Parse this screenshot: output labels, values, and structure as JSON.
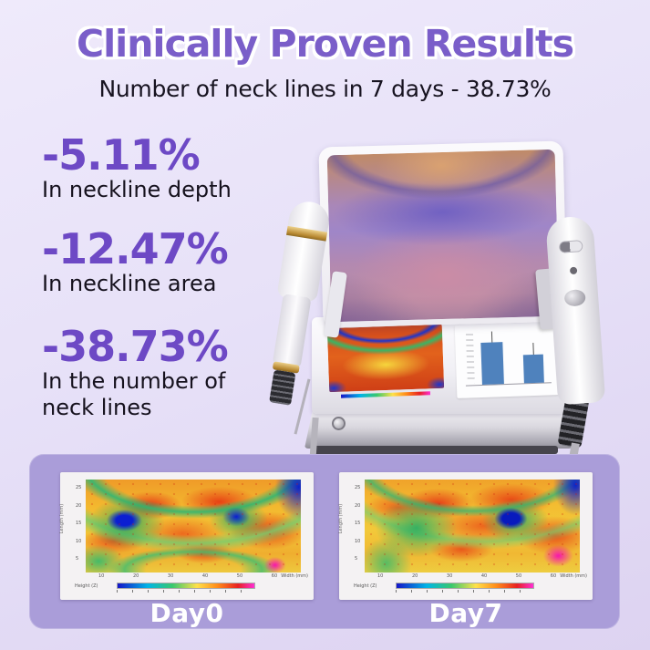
{
  "banner": {
    "title": "Clinically Proven Results",
    "subtitle": "Number of neck lines in 7 days - 38.73%"
  },
  "stats": [
    {
      "value": "-5.11%",
      "label": "In neckline depth"
    },
    {
      "value": "-12.47%",
      "label": "In neckline area"
    },
    {
      "value": "-38.73%",
      "label": "In the number of neck lines"
    }
  ],
  "comparison": {
    "panels": [
      {
        "label": "Day0",
        "y_axis_label": "Length (mm)",
        "x_axis_label": "Width (mm)",
        "colorbar_label": "Height (Z)",
        "y_ticks": "25\n20\n15\n10\n5",
        "x_ticks": "10 20 30 40 50 60"
      },
      {
        "label": "Day7",
        "y_axis_label": "Length (mm)",
        "x_axis_label": "Width (mm)",
        "colorbar_label": "Height (Z)",
        "y_ticks": "25\n20\n15\n10\n5",
        "x_ticks": "10 20 30 40 50 60"
      }
    ]
  },
  "colors": {
    "title_purple": "#7a5ec9",
    "stat_purple": "#6d49c5",
    "body_text": "#171320",
    "background_top": "#efeafb",
    "background_bottom": "#ddd3f1",
    "panel_purple": "#aa9dd9",
    "day_label_text": "#ffffff",
    "bar_blue": "#4f82bd",
    "handpiece_gold": "#b98a33"
  }
}
